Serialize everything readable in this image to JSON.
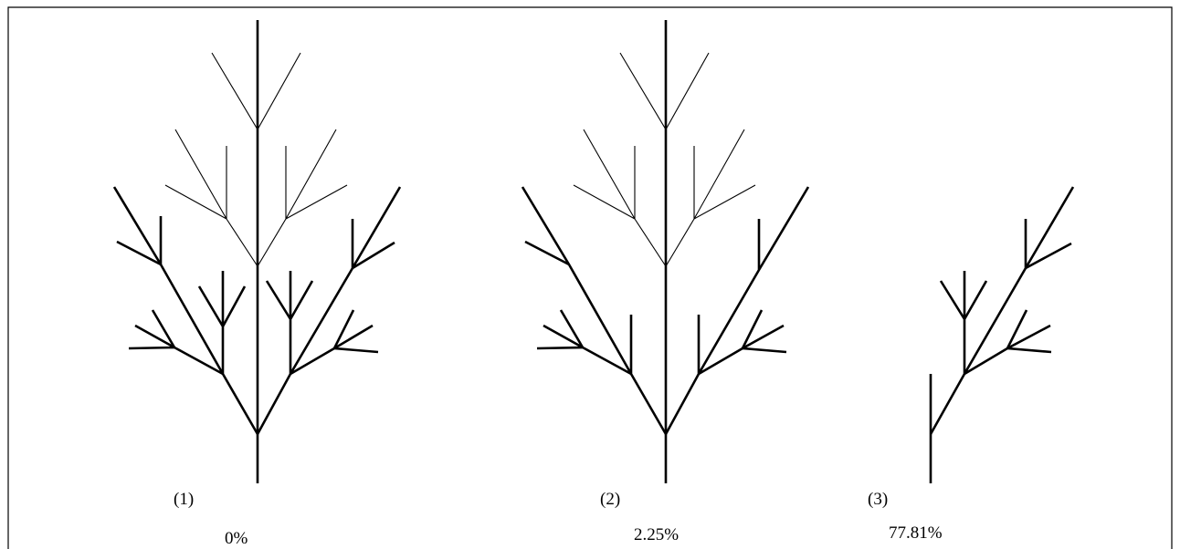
{
  "panels": [
    {
      "label": "(1)",
      "value": "0%"
    },
    {
      "label": "(2)",
      "value": "2.25%"
    },
    {
      "label": "(3)",
      "value": "77.81%"
    }
  ],
  "colors": {
    "line": "#000000",
    "background": "#ffffff"
  }
}
